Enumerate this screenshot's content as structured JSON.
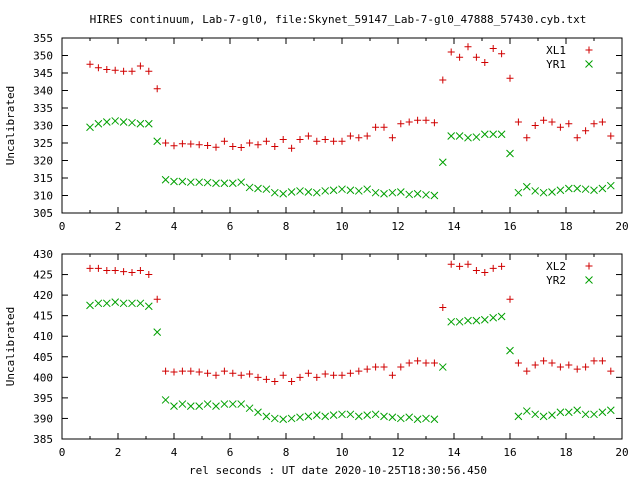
{
  "title": "HIRES continuum, Lab-7-gl0, file:Skynet_59147_Lab-7-gl0_47888_57430.cyb.txt",
  "xlabel": "rel seconds : UT date 2020-10-25T18:30:56.450",
  "colors": {
    "red": "#d00000",
    "green": "#00a000",
    "axis": "#000000"
  },
  "chart_data": [
    {
      "type": "scatter",
      "ylabel": "Uncalibrated",
      "xlim": [
        0,
        20
      ],
      "ylim": [
        305,
        355
      ],
      "xticks": [
        0,
        2,
        4,
        6,
        8,
        10,
        12,
        14,
        16,
        18,
        20
      ],
      "yticks": [
        305,
        310,
        315,
        320,
        325,
        330,
        335,
        340,
        345,
        350,
        355
      ],
      "legend_position": "top-right",
      "grid": false,
      "series": [
        {
          "name": "XL1",
          "marker": "plus",
          "color": "#d00000",
          "x": [
            1.0,
            1.3,
            1.6,
            1.9,
            2.2,
            2.5,
            2.8,
            3.1,
            3.4,
            3.7,
            4.0,
            4.3,
            4.6,
            4.9,
            5.2,
            5.5,
            5.8,
            6.1,
            6.4,
            6.7,
            7.0,
            7.3,
            7.6,
            7.9,
            8.2,
            8.5,
            8.8,
            9.1,
            9.4,
            9.7,
            10.0,
            10.3,
            10.6,
            10.9,
            11.2,
            11.5,
            11.8,
            12.1,
            12.4,
            12.7,
            13.0,
            13.3,
            13.6,
            13.9,
            14.2,
            14.5,
            14.8,
            15.1,
            15.4,
            15.7,
            16.0,
            16.3,
            16.6,
            16.9,
            17.2,
            17.5,
            17.8,
            18.1,
            18.4,
            18.7,
            19.0,
            19.3,
            19.6
          ],
          "y": [
            347.5,
            346.5,
            346.0,
            345.8,
            345.5,
            345.5,
            347.0,
            345.5,
            340.5,
            325.0,
            324.2,
            324.8,
            324.7,
            324.5,
            324.3,
            323.8,
            325.5,
            324.0,
            323.7,
            325.0,
            324.5,
            325.5,
            324.0,
            326.0,
            323.5,
            326.0,
            327.0,
            325.5,
            326.0,
            325.5,
            325.5,
            327.0,
            326.5,
            327.0,
            329.5,
            329.5,
            326.5,
            330.5,
            331.0,
            331.5,
            331.5,
            330.8,
            343.0,
            351.0,
            349.5,
            352.5,
            349.5,
            348.0,
            352.0,
            350.5,
            343.5,
            331.0,
            326.5,
            330.0,
            331.5,
            331.0,
            329.5,
            330.5,
            326.5,
            328.5,
            330.5,
            331.0,
            327.0
          ]
        },
        {
          "name": "YR1",
          "marker": "cross",
          "color": "#00a000",
          "x": [
            1.0,
            1.3,
            1.6,
            1.9,
            2.2,
            2.5,
            2.8,
            3.1,
            3.4,
            3.7,
            4.0,
            4.3,
            4.6,
            4.9,
            5.2,
            5.5,
            5.8,
            6.1,
            6.4,
            6.7,
            7.0,
            7.3,
            7.6,
            7.9,
            8.2,
            8.5,
            8.8,
            9.1,
            9.4,
            9.7,
            10.0,
            10.3,
            10.6,
            10.9,
            11.2,
            11.5,
            11.8,
            12.1,
            12.4,
            12.7,
            13.0,
            13.3,
            13.6,
            13.9,
            14.2,
            14.5,
            14.8,
            15.1,
            15.4,
            15.7,
            16.0,
            16.3,
            16.6,
            16.9,
            17.2,
            17.5,
            17.8,
            18.1,
            18.4,
            18.7,
            19.0,
            19.3,
            19.6
          ],
          "y": [
            329.5,
            330.5,
            331.0,
            331.3,
            331.0,
            330.8,
            330.5,
            330.5,
            325.5,
            314.5,
            314.0,
            314.0,
            313.8,
            313.8,
            313.7,
            313.5,
            313.5,
            313.5,
            313.8,
            312.3,
            312.0,
            311.8,
            310.8,
            310.5,
            311.0,
            311.3,
            311.0,
            310.8,
            311.3,
            311.5,
            311.8,
            311.5,
            311.3,
            311.8,
            310.8,
            310.5,
            310.8,
            311.0,
            310.3,
            310.5,
            310.2,
            310.0,
            319.5,
            327.0,
            327.0,
            326.5,
            326.7,
            327.5,
            327.5,
            327.5,
            322.0,
            310.8,
            312.5,
            311.3,
            310.8,
            311.0,
            311.5,
            312.0,
            312.0,
            311.8,
            311.5,
            312.0,
            312.8
          ]
        }
      ]
    },
    {
      "type": "scatter",
      "ylabel": "Uncalibrated",
      "xlim": [
        0,
        20
      ],
      "ylim": [
        385,
        430
      ],
      "xticks": [
        0,
        2,
        4,
        6,
        8,
        10,
        12,
        14,
        16,
        18,
        20
      ],
      "yticks": [
        385,
        390,
        395,
        400,
        405,
        410,
        415,
        420,
        425,
        430
      ],
      "legend_position": "top-right",
      "grid": false,
      "series": [
        {
          "name": "XL2",
          "marker": "plus",
          "color": "#d00000",
          "x": [
            1.0,
            1.3,
            1.6,
            1.9,
            2.2,
            2.5,
            2.8,
            3.1,
            3.4,
            3.7,
            4.0,
            4.3,
            4.6,
            4.9,
            5.2,
            5.5,
            5.8,
            6.1,
            6.4,
            6.7,
            7.0,
            7.3,
            7.6,
            7.9,
            8.2,
            8.5,
            8.8,
            9.1,
            9.4,
            9.7,
            10.0,
            10.3,
            10.6,
            10.9,
            11.2,
            11.5,
            11.8,
            12.1,
            12.4,
            12.7,
            13.0,
            13.3,
            13.6,
            13.9,
            14.2,
            14.5,
            14.8,
            15.1,
            15.4,
            15.7,
            16.0,
            16.3,
            16.6,
            16.9,
            17.2,
            17.5,
            17.8,
            18.1,
            18.4,
            18.7,
            19.0,
            19.3,
            19.6
          ],
          "y": [
            426.5,
            426.5,
            426.0,
            426.0,
            425.7,
            425.5,
            426.0,
            425.0,
            419.0,
            401.5,
            401.3,
            401.5,
            401.5,
            401.3,
            401.0,
            400.5,
            401.5,
            401.0,
            400.5,
            400.8,
            400.0,
            399.5,
            399.0,
            400.5,
            399.0,
            400.0,
            401.0,
            400.0,
            400.8,
            400.5,
            400.5,
            401.0,
            401.5,
            402.0,
            402.5,
            402.5,
            400.5,
            402.5,
            403.5,
            404.0,
            403.5,
            403.5,
            417.0,
            427.5,
            427.0,
            427.5,
            426.0,
            425.5,
            426.5,
            427.0,
            419.0,
            403.5,
            401.5,
            403.0,
            404.0,
            403.5,
            402.5,
            403.0,
            402.0,
            402.5,
            404.0,
            404.0,
            401.5
          ]
        },
        {
          "name": "YR2",
          "marker": "cross",
          "color": "#00a000",
          "x": [
            1.0,
            1.3,
            1.6,
            1.9,
            2.2,
            2.5,
            2.8,
            3.1,
            3.4,
            3.7,
            4.0,
            4.3,
            4.6,
            4.9,
            5.2,
            5.5,
            5.8,
            6.1,
            6.4,
            6.7,
            7.0,
            7.3,
            7.6,
            7.9,
            8.2,
            8.5,
            8.8,
            9.1,
            9.4,
            9.7,
            10.0,
            10.3,
            10.6,
            10.9,
            11.2,
            11.5,
            11.8,
            12.1,
            12.4,
            12.7,
            13.0,
            13.3,
            13.6,
            13.9,
            14.2,
            14.5,
            14.8,
            15.1,
            15.4,
            15.7,
            16.0,
            16.3,
            16.6,
            16.9,
            17.2,
            17.5,
            17.8,
            18.1,
            18.4,
            18.7,
            19.0,
            19.3,
            19.6
          ],
          "y": [
            417.5,
            418.0,
            418.0,
            418.3,
            418.0,
            418.0,
            418.0,
            417.3,
            411.0,
            394.5,
            393.0,
            393.5,
            393.0,
            393.0,
            393.5,
            393.0,
            393.5,
            393.5,
            393.5,
            392.5,
            391.5,
            390.5,
            390.0,
            389.8,
            390.0,
            390.3,
            390.5,
            390.8,
            390.5,
            390.8,
            391.0,
            391.0,
            390.5,
            390.8,
            391.0,
            390.5,
            390.3,
            390.0,
            390.3,
            389.8,
            390.0,
            389.8,
            402.5,
            413.5,
            413.5,
            413.8,
            413.8,
            414.0,
            414.5,
            414.8,
            406.5,
            390.5,
            391.8,
            391.0,
            390.5,
            390.8,
            391.5,
            391.5,
            392.0,
            391.0,
            391.0,
            391.5,
            392.0
          ]
        }
      ]
    }
  ]
}
